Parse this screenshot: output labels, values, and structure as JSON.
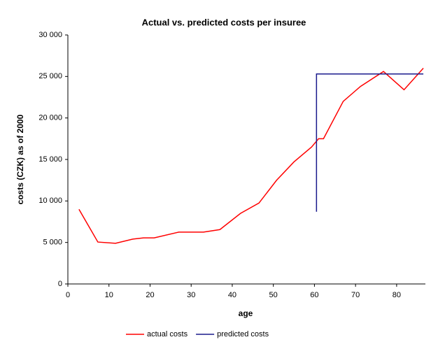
{
  "chart_data": {
    "type": "line",
    "title": "Actual vs. predicted costs per insuree",
    "x_label": "age",
    "y_label": "costs (CZK) as of 2000",
    "xlim": [
      0,
      87
    ],
    "ylim": [
      0,
      30000
    ],
    "xticks": [
      0,
      10,
      20,
      30,
      40,
      50,
      60,
      70,
      80
    ],
    "yticks": [
      0,
      {
        "value": 5000,
        "label": "5 000"
      },
      {
        "value": 10000,
        "label": "10 000"
      },
      {
        "value": 15000,
        "label": "15 000"
      },
      {
        "value": 20000,
        "label": "20 000"
      },
      {
        "value": 25000,
        "label": "25 000"
      },
      {
        "value": 30000,
        "label": "30 000"
      }
    ],
    "legend": "bottom",
    "series": [
      {
        "name": "actual costs",
        "color": "#ff0000",
        "x": [
          2.7,
          7.3,
          11.6,
          15.8,
          18.4,
          21,
          27,
          33,
          37,
          42,
          46.5,
          50.8,
          55,
          59.3,
          61,
          62.2,
          67,
          71.2,
          76.8,
          81.8,
          86.5
        ],
        "values": [
          9000,
          5050,
          4900,
          5400,
          5550,
          5550,
          6250,
          6250,
          6550,
          8500,
          9750,
          12500,
          14700,
          16500,
          17500,
          17500,
          22000,
          23800,
          25600,
          23400,
          26000
        ]
      },
      {
        "name": "predicted costs",
        "color": "#1a1a8c",
        "x": [
          60.5,
          60.5,
          86.5
        ],
        "values": [
          8700,
          25300,
          25300
        ]
      }
    ]
  }
}
